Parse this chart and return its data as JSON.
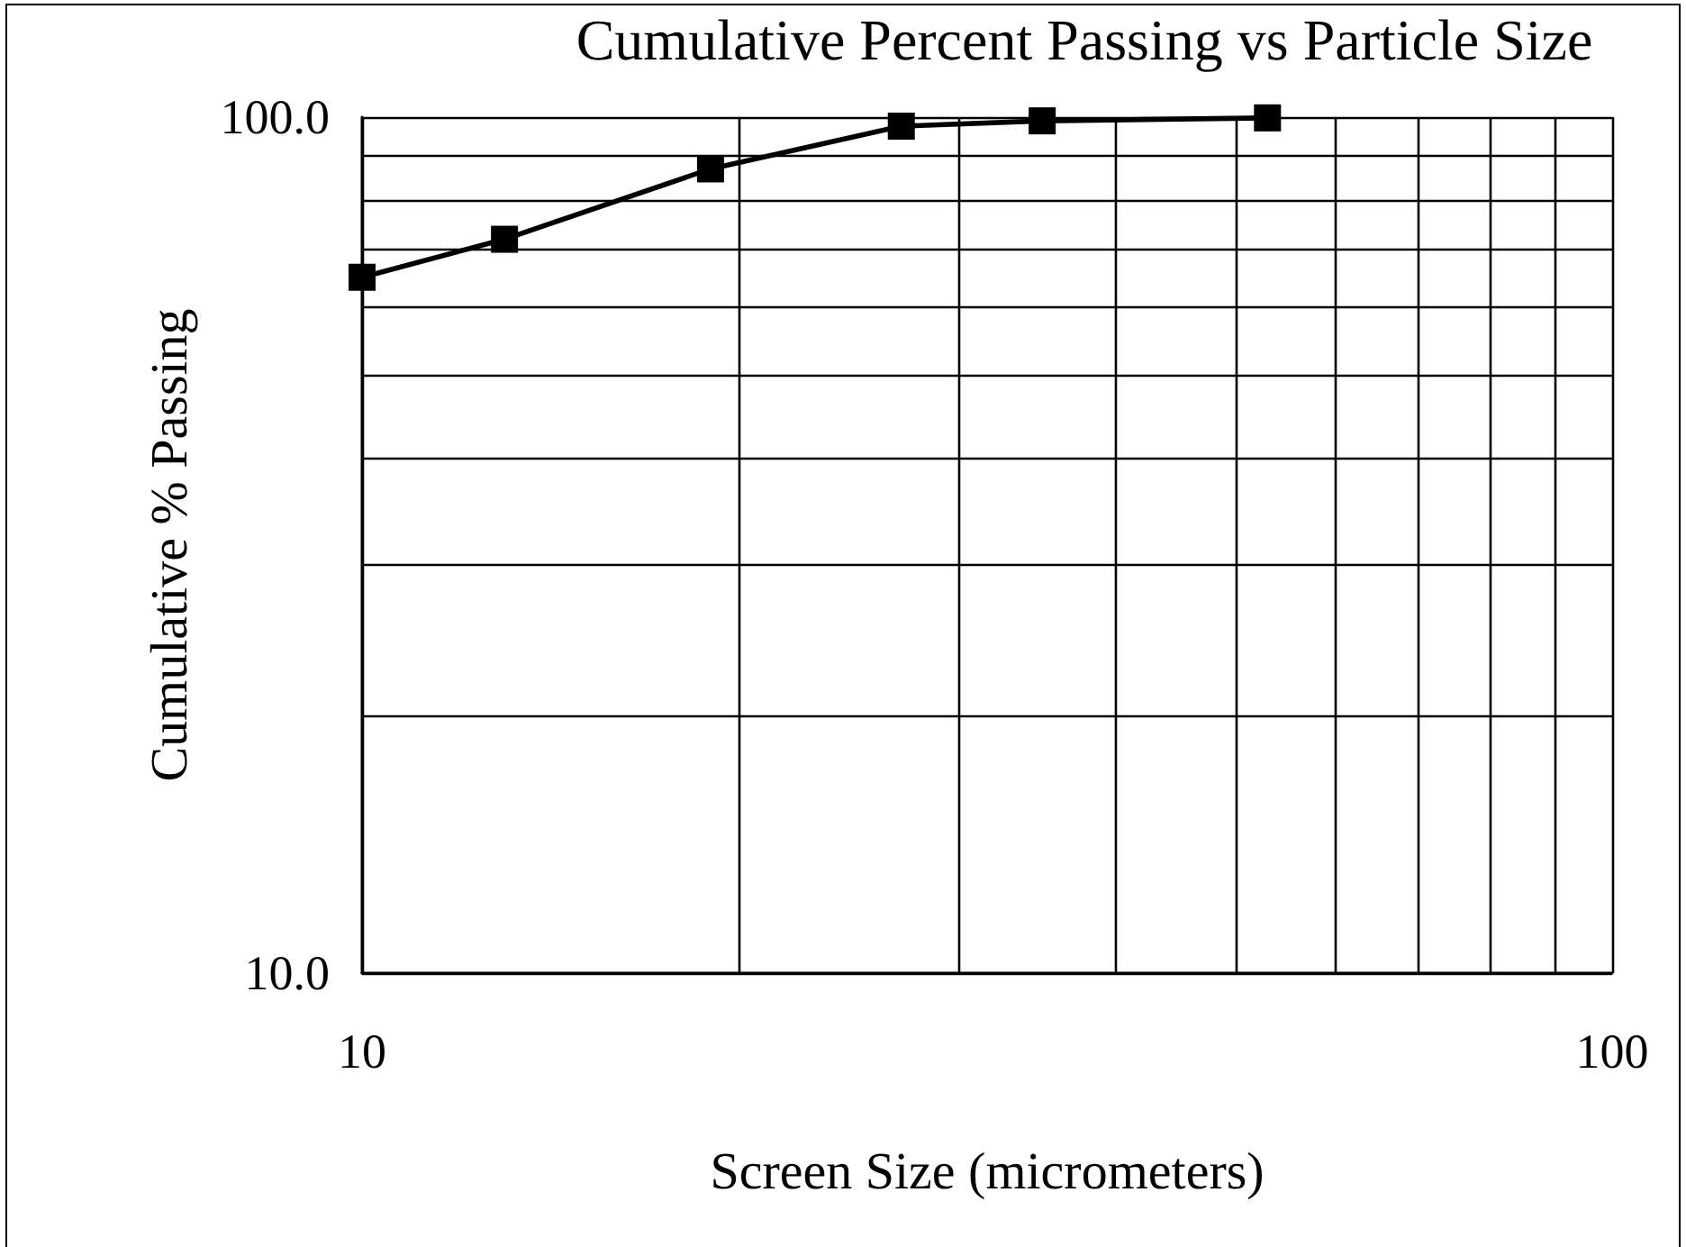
{
  "chart_data": {
    "type": "line",
    "title": "Cumulative Percent Passing vs Particle Size",
    "xlabel": "Screen Size (micrometers)",
    "ylabel": "Cumulative % Passing",
    "x": [
      10,
      13,
      19,
      27,
      35,
      53
    ],
    "series": [
      {
        "color": "#000000",
        "values": [
          65,
          72,
          87,
          97.6,
          99,
          99.8
        ]
      }
    ],
    "log": "xy",
    "xlim": [
      10,
      100
    ],
    "ylim": [
      10,
      100
    ],
    "xticks": [
      10,
      {
        "value": 20,
        "label": null
      },
      {
        "value": 30,
        "label": null
      },
      {
        "value": 40,
        "label": null
      },
      {
        "value": 50,
        "label": null
      },
      {
        "value": 60,
        "label": null
      },
      {
        "value": 70,
        "label": null
      },
      {
        "value": 80,
        "label": null
      },
      {
        "value": 90,
        "label": null
      },
      100
    ],
    "yticks": [
      {
        "value": 10,
        "label": "10.0"
      },
      {
        "value": 20,
        "label": null
      },
      {
        "value": 30,
        "label": null
      },
      {
        "value": 40,
        "label": null
      },
      {
        "value": 50,
        "label": null
      },
      {
        "value": 60,
        "label": null
      },
      {
        "value": 70,
        "label": null
      },
      {
        "value": 80,
        "label": null
      },
      {
        "value": 90,
        "label": null
      },
      {
        "value": 100,
        "label": "100.0"
      }
    ],
    "grid": true,
    "marker": "square",
    "line_style": "solid"
  }
}
